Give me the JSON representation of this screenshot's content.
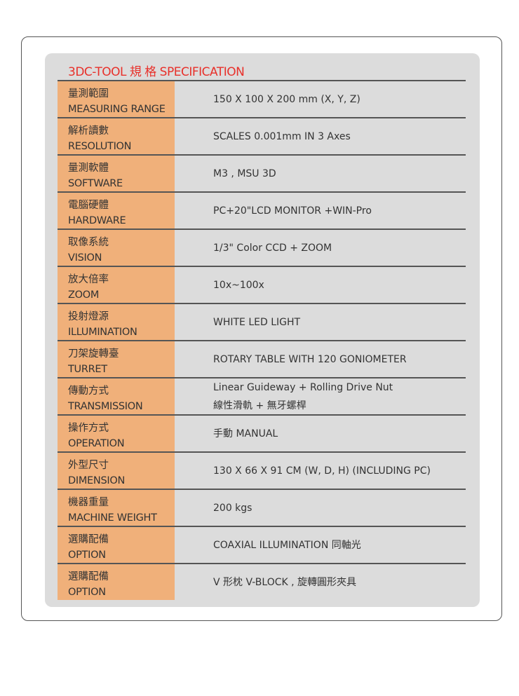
{
  "title": "3DC-TOOL 規  格 SPECIFICATION",
  "colors": {
    "title": "#e8302a",
    "label_bg": "#f0b07a",
    "panel_bg": "#dcdcdc"
  },
  "rows": [
    {
      "zh": "量測範圍",
      "en": "MEASURING RANGE",
      "value": [
        "150 X 100 X 200 mm (X, Y, Z)"
      ]
    },
    {
      "zh": "解析讀數",
      "en": "RESOLUTION",
      "value": [
        "SCALES 0.001mm IN 3 Axes"
      ]
    },
    {
      "zh": "量測軟體",
      "en": "SOFTWARE",
      "value": [
        "M3 , MSU 3D"
      ]
    },
    {
      "zh": "電腦硬體",
      "en": "HARDWARE",
      "value": [
        "PC+20\"LCD MONITOR +WIN-Pro"
      ]
    },
    {
      "zh": "取像系統",
      "en": "VISION",
      "value": [
        "1/3\" Color CCD + ZOOM"
      ]
    },
    {
      "zh": "放大倍率",
      "en": "ZOOM",
      "value": [
        "10x~100x"
      ]
    },
    {
      "zh": "投射燈源",
      "en": "ILLUMINATION",
      "value": [
        "WHITE LED LIGHT"
      ]
    },
    {
      "zh": "刀架旋轉臺",
      "en": "TURRET",
      "value": [
        "ROTARY TABLE WITH 120 GONIOMETER"
      ]
    },
    {
      "zh": "傳動方式",
      "en": "TRANSMISSION",
      "value": [
        "Linear Guideway + Rolling Drive Nut",
        "線性滑軌 + 無牙螺桿"
      ]
    },
    {
      "zh": "操作方式",
      "en": "OPERATION",
      "value": [
        "手動 MANUAL"
      ]
    },
    {
      "zh": "外型尺寸",
      "en": "DIMENSION",
      "value": [
        "130 X 66 X 91 CM  (W, D, H) (INCLUDING PC)"
      ]
    },
    {
      "zh": "機器重量",
      "en": "MACHINE WEIGHT",
      "value": [
        "200 kgs"
      ]
    },
    {
      "zh": "選購配備",
      "en": "OPTION",
      "value": [
        "COAXIAL ILLUMINATION 同軸光"
      ]
    },
    {
      "zh": "選購配備",
      "en": "OPTION",
      "value": [
        "V 形枕 V-BLOCK , 旋轉圓形夾具"
      ]
    }
  ]
}
